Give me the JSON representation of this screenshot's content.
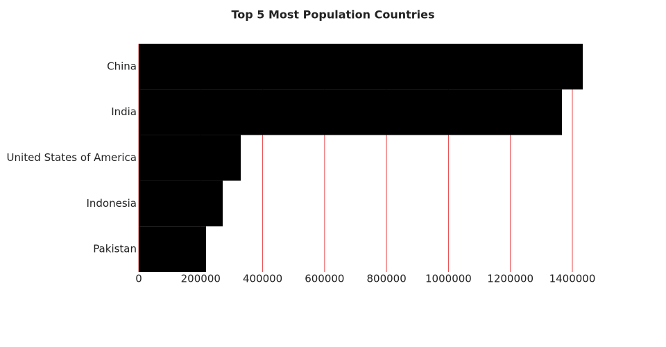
{
  "chart_data": {
    "type": "bar",
    "orientation": "horizontal",
    "title": "Top 5 Most Population Countries",
    "categories": [
      "China",
      "India",
      "United States of America",
      "Indonesia",
      "Pakistan"
    ],
    "values": [
      1433600,
      1366400,
      329280,
      271040,
      217280
    ],
    "color": "#000000",
    "grid": true,
    "grid_color": "#e8474a",
    "xlim": [
      0,
      1478400
    ],
    "xticks": [
      0,
      200000,
      400000,
      600000,
      800000,
      1000000,
      1200000,
      1400000
    ]
  }
}
